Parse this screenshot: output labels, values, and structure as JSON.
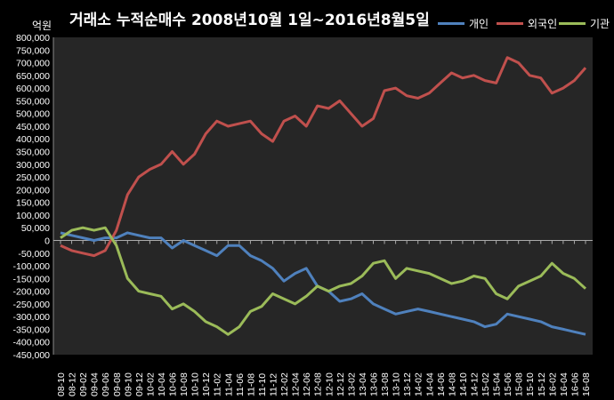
{
  "chart_data": {
    "type": "line",
    "title": "거래소 누적순매수 2008년10월 1일~2016년8월5일",
    "unit_label": "억원",
    "ylim": [
      -450000,
      800000
    ],
    "y_tick_step": 50000,
    "x_ticks": [
      "08-10",
      "08-12",
      "09-02",
      "09-04",
      "09-06",
      "09-08",
      "09-10",
      "09-12",
      "10-02",
      "10-04",
      "10-06",
      "10-08",
      "10-10",
      "10-12",
      "11-02",
      "11-04",
      "11-06",
      "11-08",
      "11-10",
      "11-12",
      "12-02",
      "12-04",
      "12-06",
      "12-08",
      "12-10",
      "12-12",
      "13-02",
      "13-04",
      "13-06",
      "13-08",
      "13-10",
      "13-12",
      "14-02",
      "14-04",
      "14-06",
      "14-08",
      "14-10",
      "14-12",
      "15-02",
      "15-04",
      "15-06",
      "15-08",
      "15-10",
      "15-12",
      "16-02",
      "16-04",
      "16-06",
      "16-08"
    ],
    "legend_position": "top-right",
    "grid": false,
    "series": [
      {
        "name": "개인",
        "color": "#4f81bd",
        "values": [
          30000,
          20000,
          10000,
          0,
          10000,
          10000,
          30000,
          20000,
          10000,
          10000,
          -30000,
          0,
          -20000,
          -40000,
          -60000,
          -20000,
          -20000,
          -60000,
          -80000,
          -110000,
          -160000,
          -130000,
          -110000,
          -180000,
          -200000,
          -240000,
          -230000,
          -210000,
          -250000,
          -270000,
          -290000,
          -280000,
          -270000,
          -280000,
          -290000,
          -300000,
          -310000,
          -320000,
          -340000,
          -330000,
          -290000,
          -300000,
          -310000,
          -320000,
          -340000,
          -350000,
          -360000,
          -370000
        ]
      },
      {
        "name": "외국인",
        "color": "#c0504d",
        "values": [
          -20000,
          -40000,
          -50000,
          -60000,
          -40000,
          40000,
          180000,
          250000,
          280000,
          300000,
          350000,
          300000,
          340000,
          420000,
          470000,
          450000,
          460000,
          470000,
          420000,
          390000,
          470000,
          490000,
          450000,
          530000,
          520000,
          550000,
          500000,
          450000,
          480000,
          590000,
          600000,
          570000,
          560000,
          580000,
          620000,
          660000,
          640000,
          650000,
          630000,
          620000,
          720000,
          700000,
          650000,
          640000,
          580000,
          600000,
          630000,
          680000
        ]
      },
      {
        "name": "기관",
        "color": "#9bbb59",
        "values": [
          10000,
          40000,
          50000,
          40000,
          50000,
          -20000,
          -150000,
          -200000,
          -210000,
          -220000,
          -270000,
          -250000,
          -280000,
          -320000,
          -340000,
          -370000,
          -340000,
          -280000,
          -260000,
          -210000,
          -230000,
          -250000,
          -220000,
          -180000,
          -200000,
          -180000,
          -170000,
          -140000,
          -90000,
          -80000,
          -150000,
          -110000,
          -120000,
          -130000,
          -150000,
          -170000,
          -160000,
          -140000,
          -150000,
          -210000,
          -230000,
          -180000,
          -160000,
          -140000,
          -90000,
          -130000,
          -150000,
          -190000
        ]
      }
    ]
  }
}
